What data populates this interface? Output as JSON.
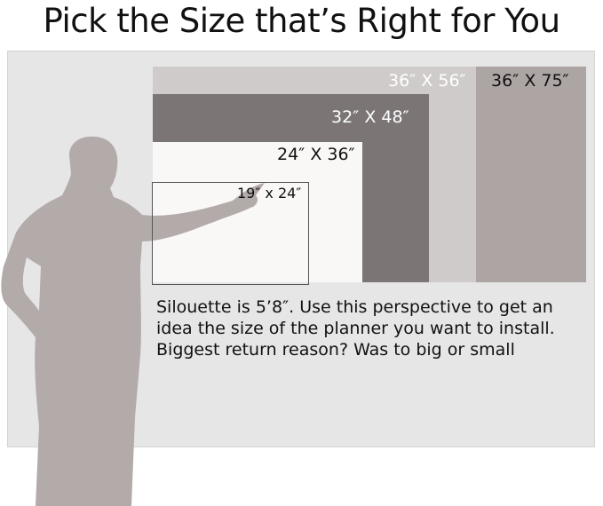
{
  "title": "Pick the Size that’s Right for You",
  "sizes": [
    {
      "label": "36″ X 56″",
      "color": "#d0cbcb",
      "text_color": "#ffffff"
    },
    {
      "label": "36″ X 75″",
      "color": "#ada4a4",
      "text_color": "#111111"
    },
    {
      "label": "32″ X 48″",
      "color": "#7b7576",
      "text_color": "#ffffff"
    },
    {
      "label": "24″ X 36″",
      "color": "#faf8f7",
      "text_color": "#111111"
    },
    {
      "label": "19″ x 24″",
      "color": "#faf8f7",
      "text_color": "#111111"
    }
  ],
  "note": {
    "line1": "Silouette is 5’8″. Use this perspective to get an",
    "line2": "idea the size of the planner you want to install.",
    "line3": "Biggest return reason? Was to big or small"
  },
  "silhouette_color": "#b3aaaa"
}
